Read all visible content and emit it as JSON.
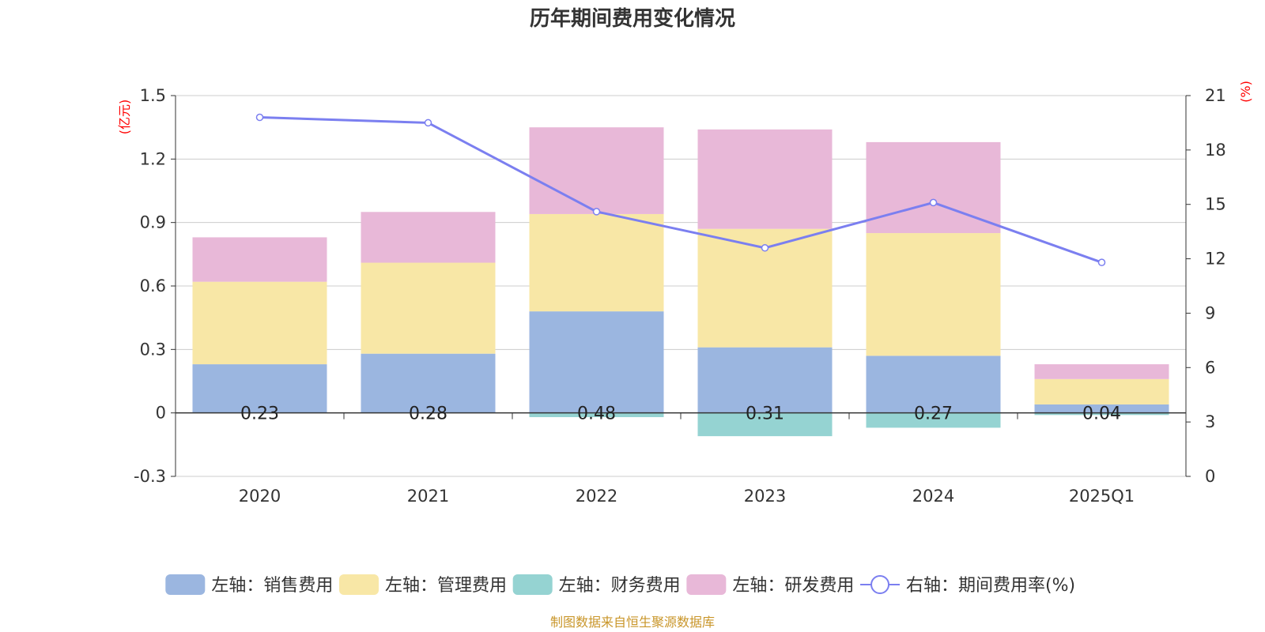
{
  "source_note": "制图数据来自恒生聚源数据库",
  "chart_data": {
    "type": "bar",
    "title": "历年期间费用变化情况",
    "categories": [
      "2020",
      "2021",
      "2022",
      "2023",
      "2024",
      "2025Q1"
    ],
    "left_axis": {
      "unit": "(亿元)",
      "ylim": [
        -0.3,
        1.5
      ],
      "ticks": [
        "-0.3",
        "0",
        "0.3",
        "0.6",
        "0.9",
        "1.2",
        "1.5"
      ]
    },
    "right_axis": {
      "unit": "(%)",
      "ylim": [
        0,
        21
      ],
      "ticks": [
        "0",
        "3",
        "6",
        "9",
        "12",
        "15",
        "18",
        "21"
      ]
    },
    "grid": true,
    "legend_position": "bottom",
    "series": [
      {
        "name": "左轴：销售费用",
        "type": "bar",
        "axis": "left",
        "color": "#9bb6e0",
        "values": [
          0.23,
          0.28,
          0.48,
          0.31,
          0.27,
          0.04
        ],
        "labels": [
          "0.23",
          "0.28",
          "0.48",
          "0.31",
          "0.27",
          "0.04"
        ]
      },
      {
        "name": "左轴：管理费用",
        "type": "bar",
        "axis": "left",
        "color": "#f8e7a6",
        "values": [
          0.39,
          0.43,
          0.46,
          0.56,
          0.58,
          0.12
        ]
      },
      {
        "name": "左轴：财务费用",
        "type": "bar",
        "axis": "left",
        "color": "#95d3d2",
        "values": [
          0.0,
          0.0,
          -0.02,
          -0.11,
          -0.07,
          -0.01
        ]
      },
      {
        "name": "左轴：研发费用",
        "type": "bar",
        "axis": "left",
        "color": "#e8b8d8",
        "values": [
          0.21,
          0.24,
          0.41,
          0.47,
          0.43,
          0.07
        ]
      },
      {
        "name": "右轴：期间费用率(%)",
        "type": "line",
        "axis": "right",
        "color": "#7b7ff0",
        "values": [
          19.8,
          19.5,
          14.6,
          12.6,
          15.1,
          11.8
        ]
      }
    ]
  }
}
